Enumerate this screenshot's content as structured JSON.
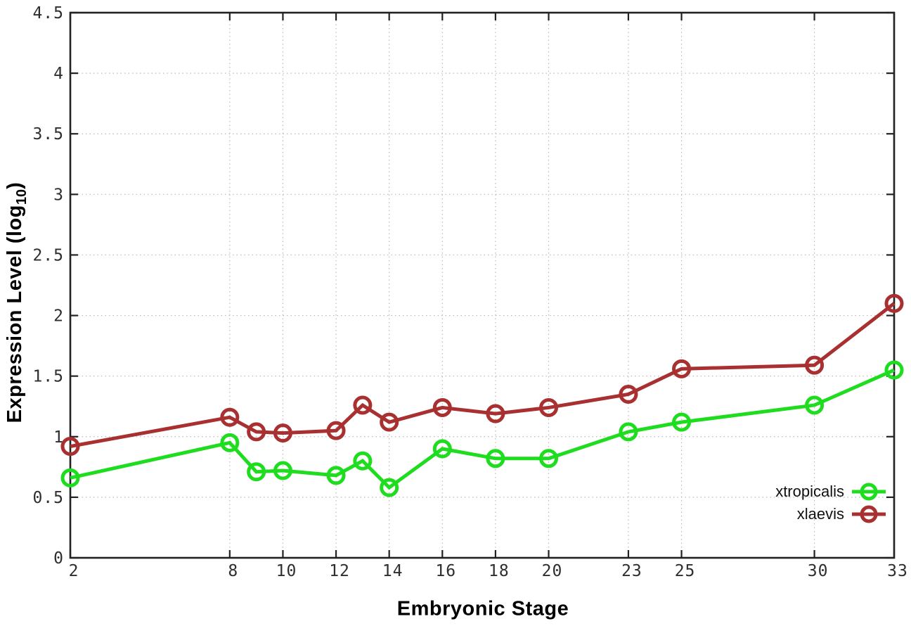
{
  "figure": {
    "background": "#ffffff",
    "frame_color": "#222222",
    "grid_color": "#b9b9b9",
    "tick_label_color": "#2e2e2e"
  },
  "chart_data": {
    "type": "line",
    "title": "",
    "xlabel": "Embryonic Stage",
    "ylabel": "Expression Level (log10)",
    "ylabel_parts": {
      "prefix": "Expression Level (log",
      "subscript": "10",
      "suffix": ")"
    },
    "xlim": [
      2,
      33
    ],
    "ylim": [
      0,
      4.5
    ],
    "xticks": [
      2,
      8,
      10,
      12,
      14,
      16,
      18,
      20,
      23,
      25,
      30,
      33
    ],
    "xtick_labels": [
      "2",
      "8",
      "10",
      "12",
      "14",
      "16",
      "18",
      "20",
      "23",
      "25",
      "30",
      "33"
    ],
    "yticks": [
      0,
      0.5,
      1,
      1.5,
      2,
      2.5,
      3,
      3.5,
      4,
      4.5
    ],
    "ytick_labels": [
      "0",
      "0.5",
      "1",
      "1.5",
      "2",
      "2.5",
      "3",
      "3.5",
      "4",
      "4.5"
    ],
    "grid": true,
    "legend_position": "bottom-right",
    "x": [
      2,
      8,
      9,
      10,
      12,
      13,
      14,
      16,
      18,
      20,
      23,
      25,
      30,
      33
    ],
    "series": [
      {
        "name": "xtropicalis",
        "color": "#1edc1e",
        "values": [
          0.66,
          0.95,
          0.71,
          0.72,
          0.68,
          0.8,
          0.58,
          0.9,
          0.82,
          0.82,
          1.04,
          1.12,
          1.26,
          1.55
        ]
      },
      {
        "name": "xlaevis",
        "color": "#a93030",
        "values": [
          0.92,
          1.16,
          1.04,
          1.03,
          1.05,
          1.26,
          1.12,
          1.24,
          1.19,
          1.24,
          1.35,
          1.56,
          1.59,
          2.1
        ]
      }
    ]
  }
}
